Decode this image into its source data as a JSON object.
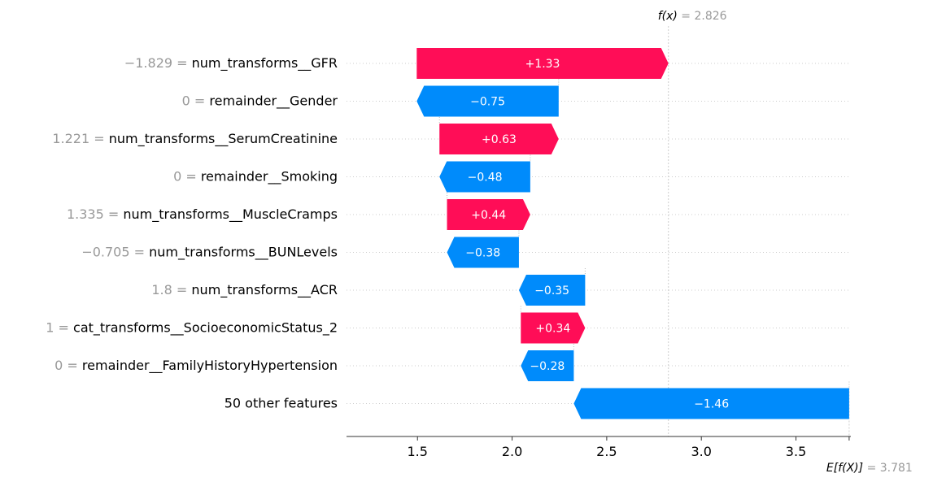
{
  "chart_data": {
    "type": "waterfall",
    "fx": {
      "label_italic": "f(x)",
      "eq": " = 2.826",
      "value": 2.826
    },
    "base": {
      "label": "E[f(X)]",
      "eq": " = 3.781",
      "value": 3.781
    },
    "xlim": [
      1.125,
      3.79
    ],
    "xticks": [
      1.5,
      2.0,
      2.5,
      3.0,
      3.5
    ],
    "xtick_labels": [
      "1.5",
      "2.0",
      "2.5",
      "3.0",
      "3.5"
    ],
    "colors": {
      "positive": "#ff0d57",
      "negative": "#008bfb",
      "muted": "#999999",
      "grid": "#cccccc"
    },
    "bars": [
      {
        "feature_value": "−1.829 = ",
        "feature_name": "num_transforms__GFR",
        "label": "+1.33",
        "start": 1.496,
        "end": 2.826
      },
      {
        "feature_value": "0 = ",
        "feature_name": "remainder__Gender",
        "label": "−0.75",
        "start": 2.246,
        "end": 1.496
      },
      {
        "feature_value": "1.221 = ",
        "feature_name": "num_transforms__SerumCreatinine",
        "label": "+0.63",
        "start": 1.616,
        "end": 2.246
      },
      {
        "feature_value": "0 = ",
        "feature_name": "remainder__Smoking",
        "label": "−0.48",
        "start": 2.096,
        "end": 1.616
      },
      {
        "feature_value": "1.335 = ",
        "feature_name": "num_transforms__MuscleCramps",
        "label": "+0.44",
        "start": 1.656,
        "end": 2.096
      },
      {
        "feature_value": "−0.705 = ",
        "feature_name": "num_transforms__BUNLevels",
        "label": "−0.38",
        "start": 2.036,
        "end": 1.656
      },
      {
        "feature_value": "1.8 = ",
        "feature_name": "num_transforms__ACR",
        "label": "−0.35",
        "start": 2.386,
        "end": 2.036
      },
      {
        "feature_value": "1 = ",
        "feature_name": "cat_transforms__SocioeconomicStatus_2",
        "label": "+0.34",
        "start": 2.046,
        "end": 2.386
      },
      {
        "feature_value": "0 = ",
        "feature_name": "remainder__FamilyHistoryHypertension",
        "label": "−0.28",
        "start": 2.326,
        "end": 2.046
      },
      {
        "feature_value": "",
        "feature_name": "50 other features",
        "label": "−1.46",
        "start": 3.781,
        "end": 2.326
      }
    ]
  }
}
